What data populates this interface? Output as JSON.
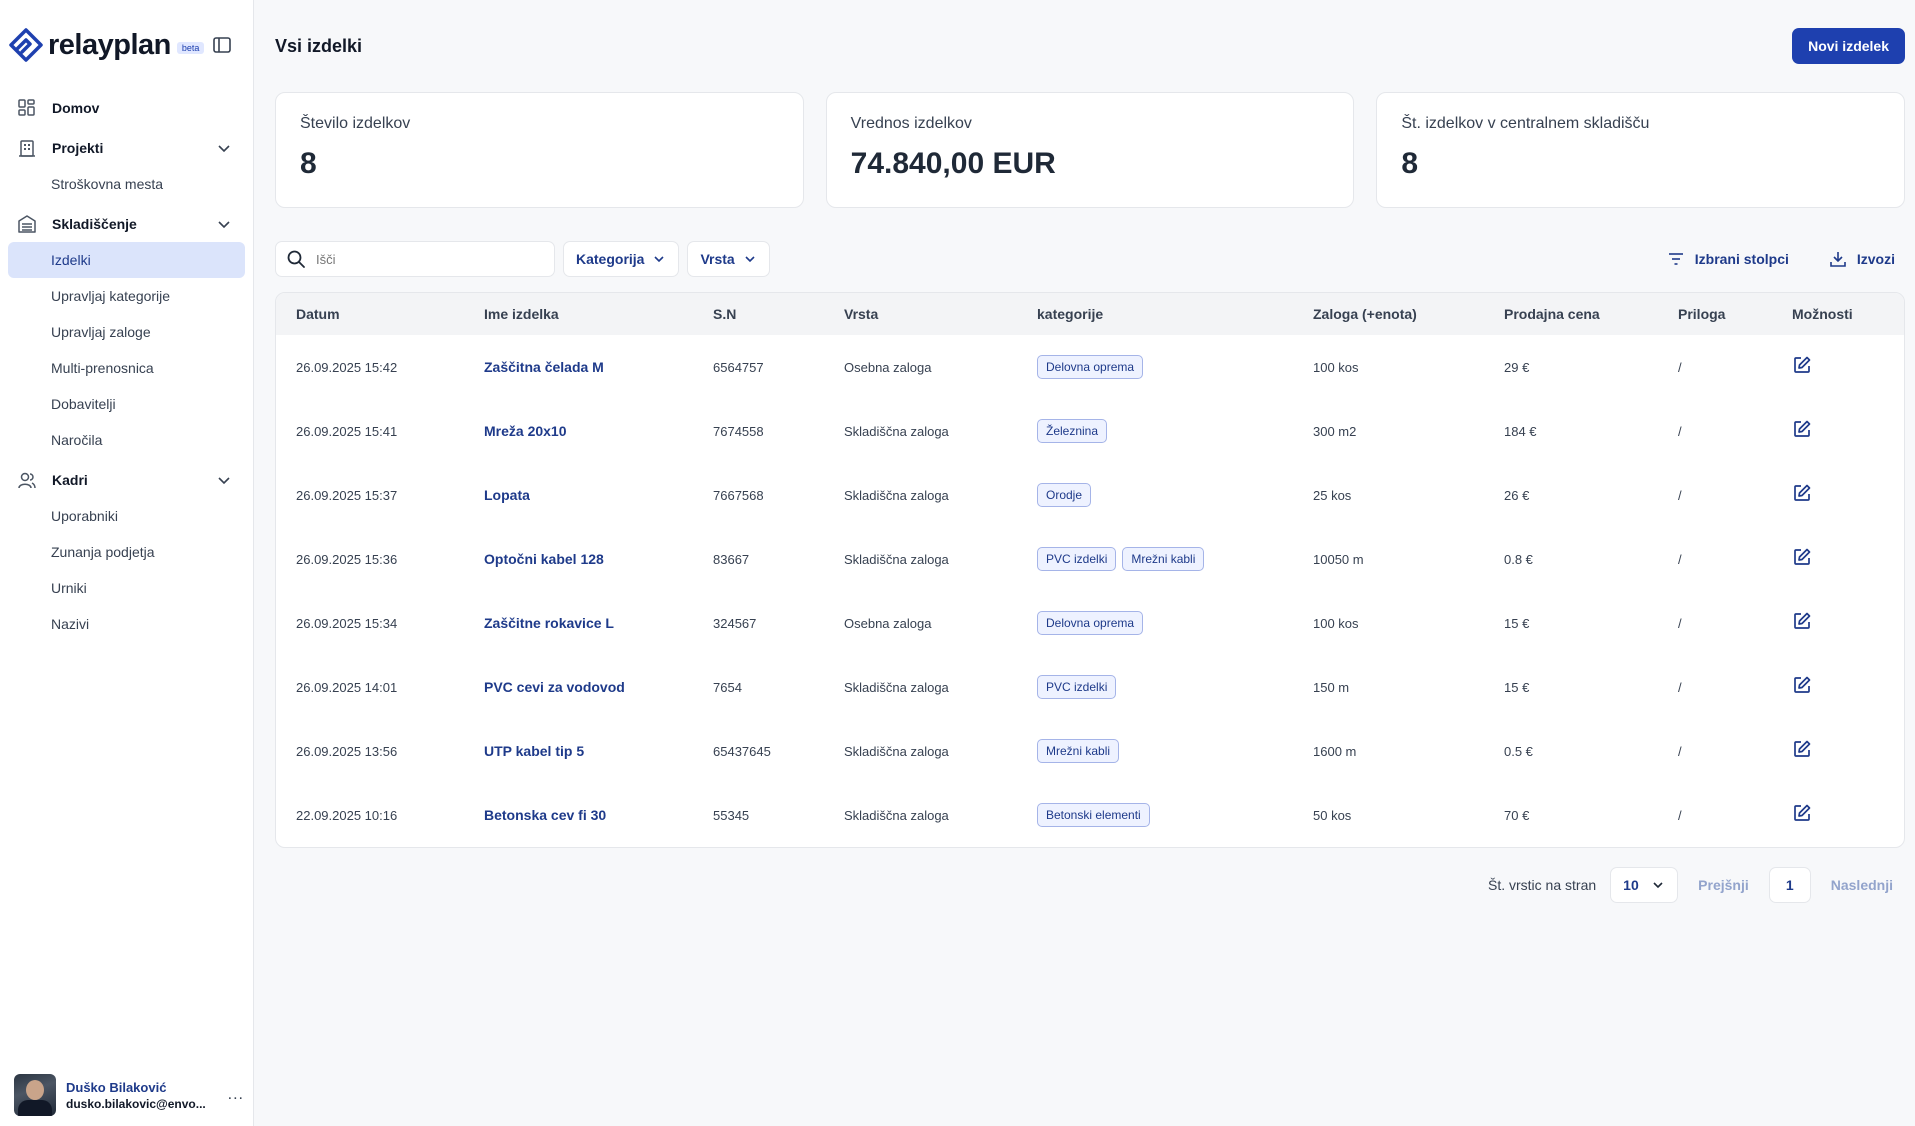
{
  "app": {
    "name": "relayplan",
    "badge": "beta"
  },
  "sidebar": {
    "items": [
      {
        "label": "Domov",
        "icon": "dashboard-icon"
      },
      {
        "label": "Projekti",
        "icon": "building-icon",
        "children": [
          "Stroškovna mesta"
        ]
      },
      {
        "label": "Skladiščenje",
        "icon": "warehouse-icon",
        "children": [
          "Izdelki",
          "Upravljaj kategorije",
          "Upravljaj zaloge",
          "Multi-prenosnica",
          "Dobavitelji",
          "Naročila"
        ]
      },
      {
        "label": "Kadri",
        "icon": "users-icon",
        "children": [
          "Uporabniki",
          "Zunanja podjetja",
          "Urniki",
          "Nazivi"
        ]
      }
    ],
    "active_item": "Izdelki",
    "user": {
      "name": "Duško Bilaković",
      "email": "dusko.bilakovic@envo...",
      "more": "..."
    }
  },
  "header": {
    "title": "Vsi izdelki",
    "new_button": "Novi izdelek"
  },
  "stats": [
    {
      "label": "Število izdelkov",
      "value": "8"
    },
    {
      "label": "Vrednos izdelkov",
      "value": "74.840,00 EUR"
    },
    {
      "label": "Št. izdelkov v centralnem skladišču",
      "value": "8"
    }
  ],
  "toolbar": {
    "search_placeholder": "Išči",
    "filter_category": "Kategorija",
    "filter_type": "Vrsta",
    "columns_button": "Izbrani stolpci",
    "export_button": "Izvozi"
  },
  "table": {
    "columns": [
      "Datum",
      "Ime izdelka",
      "S.N",
      "Vrsta",
      "kategorije",
      "Zaloga (+enota)",
      "Prodajna cena",
      "Priloga",
      "Možnosti"
    ],
    "rows": [
      {
        "date": "26.09.2025 15:42",
        "name": "Zaščitna čelada M",
        "sn": "6564757",
        "type": "Osebna zaloga",
        "tags": [
          "Delovna oprema"
        ],
        "stock": "100 kos",
        "price": "29 €",
        "attachment": "/"
      },
      {
        "date": "26.09.2025 15:41",
        "name": "Mreža 20x10",
        "sn": "7674558",
        "type": "Skladiščna zaloga",
        "tags": [
          "Železnina"
        ],
        "stock": "300 m2",
        "price": "184 €",
        "attachment": "/"
      },
      {
        "date": "26.09.2025 15:37",
        "name": "Lopata",
        "sn": "7667568",
        "type": "Skladiščna zaloga",
        "tags": [
          "Orodje"
        ],
        "stock": "25 kos",
        "price": "26 €",
        "attachment": "/"
      },
      {
        "date": "26.09.2025 15:36",
        "name": "Optočni kabel 128",
        "sn": "83667",
        "type": "Skladiščna zaloga",
        "tags": [
          "PVC izdelki",
          "Mrežni kabli"
        ],
        "stock": "10050 m",
        "price": "0.8 €",
        "attachment": "/"
      },
      {
        "date": "26.09.2025 15:34",
        "name": "Zaščitne rokavice L",
        "sn": "324567",
        "type": "Osebna zaloga",
        "tags": [
          "Delovna oprema"
        ],
        "stock": "100 kos",
        "price": "15 €",
        "attachment": "/"
      },
      {
        "date": "26.09.2025 14:01",
        "name": "PVC cevi za vodovod",
        "sn": "7654",
        "type": "Skladiščna zaloga",
        "tags": [
          "PVC izdelki"
        ],
        "stock": "150 m",
        "price": "15 €",
        "attachment": "/"
      },
      {
        "date": "26.09.2025 13:56",
        "name": "UTP kabel tip 5",
        "sn": "65437645",
        "type": "Skladiščna zaloga",
        "tags": [
          "Mrežni kabli"
        ],
        "stock": "1600 m",
        "price": "0.5 €",
        "attachment": "/"
      },
      {
        "date": "22.09.2025 10:16",
        "name": "Betonska cev fi 30",
        "sn": "55345",
        "type": "Skladiščna zaloga",
        "tags": [
          "Betonski elementi"
        ],
        "stock": "50 kos",
        "price": "70 €",
        "attachment": "/"
      }
    ]
  },
  "pagination": {
    "rows_label": "Št. vrstic na stran",
    "rows_per_page": "10",
    "prev": "Prejšnji",
    "page": "1",
    "next": "Naslednji"
  },
  "colors": {
    "accent": "#1e40af",
    "active_bg": "#dbe4fb",
    "tag_bg": "#eef2ff",
    "tag_border": "#a5b4e8"
  }
}
